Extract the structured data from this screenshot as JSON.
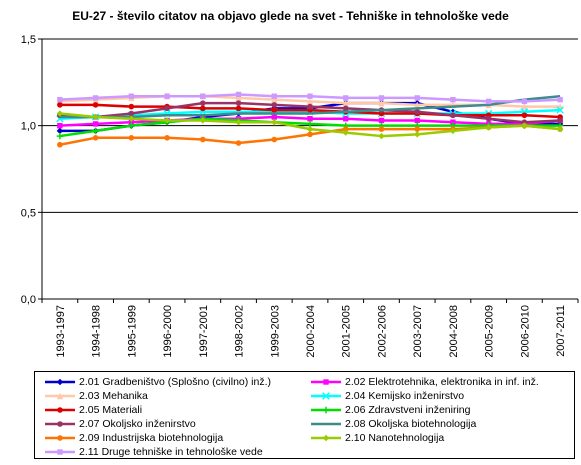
{
  "chart_data": {
    "type": "line",
    "title": "EU-27 - število citatov na objavo glede na svet - Tehniške in tehnološke vede",
    "xlabel": "",
    "ylabel": "",
    "ylim": [
      0,
      1.5
    ],
    "y_ticks": [
      "0,0",
      "0,5",
      "1,0",
      "1,5"
    ],
    "y_tick_values": [
      0,
      0.5,
      1.0,
      1.5
    ],
    "grid": "horizontal",
    "legend_position": "bottom",
    "categories": [
      "1993-1997",
      "1994-1998",
      "1995-1999",
      "1996-2000",
      "1997-2001",
      "1998-2002",
      "1999-2003",
      "2000-2004",
      "2001-2005",
      "2002-2006",
      "2003-2007",
      "2004-2008",
      "2005-2009",
      "2006-2010",
      "2007-2011"
    ],
    "series": [
      {
        "name": "2.01 Gradbeništvo (Splošno (civilno) inž.)",
        "color": "#0000CC",
        "marker": "diamond",
        "values": [
          0.97,
          0.97,
          1.0,
          1.02,
          1.05,
          1.07,
          1.1,
          1.1,
          1.13,
          1.13,
          1.13,
          1.08,
          1.04,
          1.01,
          1.01
        ]
      },
      {
        "name": "2.02 Elektrotehnika, elektronika in inf. inž.",
        "color": "#FF00FF",
        "marker": "square",
        "values": [
          1.0,
          1.01,
          1.02,
          1.03,
          1.04,
          1.04,
          1.05,
          1.04,
          1.04,
          1.03,
          1.03,
          1.02,
          1.01,
          1.01,
          1.03
        ]
      },
      {
        "name": "2.03 Mehanika",
        "color": "#FFC8A8",
        "marker": "triangle",
        "values": [
          1.14,
          1.15,
          1.16,
          1.17,
          1.17,
          1.16,
          1.15,
          1.14,
          1.13,
          1.13,
          1.12,
          1.12,
          1.12,
          1.11,
          1.11
        ]
      },
      {
        "name": "2.04 Kemijsko inženirstvo",
        "color": "#00FFFF",
        "marker": "x",
        "values": [
          1.04,
          1.05,
          1.06,
          1.07,
          1.08,
          1.08,
          1.08,
          1.08,
          1.07,
          1.07,
          1.07,
          1.07,
          1.07,
          1.08,
          1.09
        ]
      },
      {
        "name": "2.05 Materiali",
        "color": "#DD0000",
        "marker": "circle",
        "values": [
          1.12,
          1.12,
          1.11,
          1.11,
          1.1,
          1.1,
          1.09,
          1.09,
          1.08,
          1.07,
          1.07,
          1.06,
          1.06,
          1.06,
          1.05
        ]
      },
      {
        "name": "2.06 Zdravstveni inženiring",
        "color": "#00DD00",
        "marker": "plus",
        "values": [
          0.94,
          0.97,
          1.0,
          1.02,
          1.04,
          1.03,
          1.02,
          1.01,
          1.0,
          1.0,
          1.0,
          1.0,
          1.0,
          1.0,
          1.0
        ]
      },
      {
        "name": "2.07 Okoljsko inženirstvo",
        "color": "#993366",
        "marker": "circle",
        "values": [
          1.06,
          1.05,
          1.07,
          1.1,
          1.13,
          1.13,
          1.12,
          1.11,
          1.1,
          1.09,
          1.08,
          1.06,
          1.04,
          1.02,
          1.03
        ]
      },
      {
        "name": "2.08 Okoljska biotehnologija",
        "color": "#3C8C8C",
        "marker": "none",
        "values": [
          1.05,
          1.05,
          1.05,
          1.06,
          1.06,
          1.07,
          1.07,
          1.07,
          1.08,
          1.09,
          1.1,
          1.11,
          1.12,
          1.15,
          1.17
        ]
      },
      {
        "name": "2.09 Industrijska biotehnologija",
        "color": "#FF7300",
        "marker": "circle",
        "values": [
          0.89,
          0.93,
          0.93,
          0.93,
          0.92,
          0.9,
          0.92,
          0.95,
          0.98,
          0.98,
          0.98,
          0.98,
          0.99,
          1.0,
          0.98
        ]
      },
      {
        "name": "2.10 Nanotehnologija",
        "color": "#99CC00",
        "marker": "diamond",
        "values": [
          1.07,
          1.05,
          1.04,
          1.03,
          1.03,
          1.02,
          1.02,
          0.98,
          0.96,
          0.94,
          0.95,
          0.97,
          0.99,
          1.0,
          0.98
        ]
      },
      {
        "name": "2.11 Druge tehniške in tehnološke vede",
        "color": "#CC99FF",
        "marker": "square",
        "values": [
          1.15,
          1.16,
          1.17,
          1.17,
          1.17,
          1.18,
          1.17,
          1.17,
          1.16,
          1.16,
          1.16,
          1.15,
          1.14,
          1.14,
          1.15
        ]
      }
    ]
  }
}
